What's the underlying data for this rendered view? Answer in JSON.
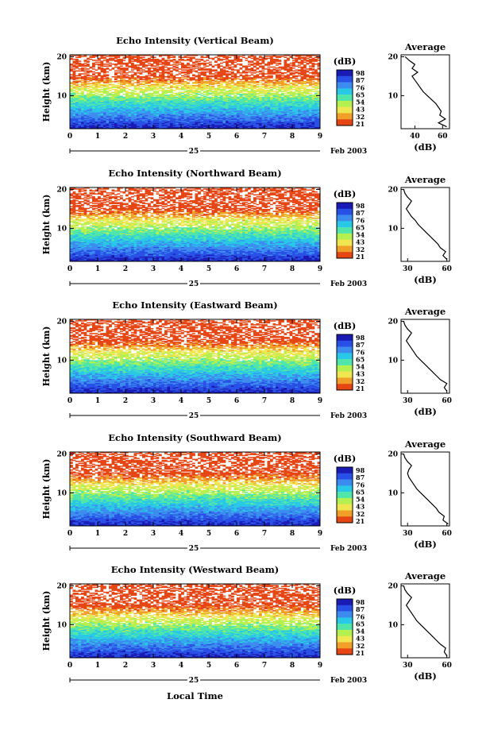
{
  "figure": {
    "time_axis_label": "Local Time",
    "date_label": "Feb 2003",
    "day_label": "25"
  },
  "colorbar": {
    "unit": "(dB)",
    "tick_labels": [
      "98",
      "87",
      "76",
      "65",
      "54",
      "43",
      "32",
      "21"
    ],
    "colors": [
      "#1a1ab4",
      "#2850e6",
      "#3c8cf0",
      "#28c8e6",
      "#50e6aa",
      "#b4f050",
      "#f0e650",
      "#f0a028",
      "#e64614"
    ]
  },
  "chart_data": [
    {
      "type": "heatmap",
      "title": "Echo Intensity (Vertical Beam)",
      "ylabel": "Height (km)",
      "xlabel": "Local Time",
      "x_ticks": [
        "0",
        "1",
        "2",
        "3",
        "4",
        "5",
        "6",
        "7",
        "8",
        "9"
      ],
      "y_ticks": [
        "10",
        "20"
      ],
      "xlim": [
        0,
        9
      ],
      "ylim": [
        1.5,
        20.5
      ],
      "profile_title": "Average",
      "profile_xlabel": "(dB)",
      "profile_x_ticks": [
        "40",
        "60"
      ],
      "profile_xlim": [
        30,
        65
      ],
      "profile_height": [
        2,
        3,
        4,
        5,
        6,
        7,
        8,
        9,
        10,
        11,
        12,
        13,
        14,
        15,
        16,
        17,
        18,
        19,
        20
      ],
      "profile_db": [
        63,
        57,
        62,
        58,
        59,
        57,
        55,
        52,
        49,
        46,
        44,
        42,
        40,
        38,
        42,
        38,
        40,
        36,
        33
      ]
    },
    {
      "type": "heatmap",
      "title": "Echo Intensity (Northward Beam)",
      "ylabel": "Height (km)",
      "xlabel": "Local Time",
      "x_ticks": [
        "0",
        "1",
        "2",
        "3",
        "4",
        "5",
        "6",
        "7",
        "8",
        "9"
      ],
      "y_ticks": [
        "10",
        "20"
      ],
      "xlim": [
        0,
        9
      ],
      "ylim": [
        1.5,
        20.5
      ],
      "profile_title": "Average",
      "profile_xlabel": "(dB)",
      "profile_x_ticks": [
        "30",
        "60"
      ],
      "profile_xlim": [
        25,
        62
      ],
      "profile_height": [
        2,
        3,
        4,
        5,
        6,
        7,
        8,
        9,
        10,
        11,
        12,
        13,
        14,
        15,
        16,
        17,
        18,
        19,
        20
      ],
      "profile_db": [
        60,
        57,
        59,
        55,
        53,
        50,
        47,
        44,
        41,
        38,
        36,
        33,
        31,
        29,
        31,
        33,
        30,
        28,
        27
      ]
    },
    {
      "type": "heatmap",
      "title": "Echo Intensity (Eastward Beam)",
      "ylabel": "Height (km)",
      "xlabel": "Local Time",
      "x_ticks": [
        "0",
        "1",
        "2",
        "3",
        "4",
        "5",
        "6",
        "7",
        "8",
        "9"
      ],
      "y_ticks": [
        "10",
        "20"
      ],
      "xlim": [
        0,
        9
      ],
      "ylim": [
        1.5,
        20.5
      ],
      "profile_title": "Average",
      "profile_xlabel": "(dB)",
      "profile_x_ticks": [
        "30",
        "60"
      ],
      "profile_xlim": [
        25,
        62
      ],
      "profile_height": [
        2,
        3,
        4,
        5,
        6,
        7,
        8,
        9,
        10,
        11,
        12,
        13,
        14,
        15,
        16,
        17,
        18,
        19,
        20
      ],
      "profile_db": [
        60,
        58,
        60,
        55,
        52,
        49,
        46,
        43,
        40,
        37,
        35,
        33,
        31,
        29,
        31,
        33,
        30,
        28,
        27
      ]
    },
    {
      "type": "heatmap",
      "title": "Echo Intensity (Southward Beam)",
      "ylabel": "Height (km)",
      "xlabel": "Local Time",
      "x_ticks": [
        "0",
        "1",
        "2",
        "3",
        "4",
        "5",
        "6",
        "7",
        "8",
        "9"
      ],
      "y_ticks": [
        "10",
        "20"
      ],
      "xlim": [
        0,
        9
      ],
      "ylim": [
        1.5,
        20.5
      ],
      "profile_title": "Average",
      "profile_xlabel": "(dB)",
      "profile_x_ticks": [
        "30",
        "60"
      ],
      "profile_xlim": [
        25,
        62
      ],
      "profile_height": [
        2,
        3,
        4,
        5,
        6,
        7,
        8,
        9,
        10,
        11,
        12,
        13,
        14,
        15,
        16,
        17,
        18,
        19,
        20
      ],
      "profile_db": [
        61,
        57,
        58,
        54,
        52,
        49,
        46,
        43,
        40,
        37,
        35,
        33,
        31,
        30,
        31,
        33,
        30,
        28,
        27
      ]
    },
    {
      "type": "heatmap",
      "title": "Echo Intensity (Westward Beam)",
      "ylabel": "Height (km)",
      "xlabel": "Local Time",
      "x_ticks": [
        "0",
        "1",
        "2",
        "3",
        "4",
        "5",
        "6",
        "7",
        "8",
        "9"
      ],
      "y_ticks": [
        "10",
        "20"
      ],
      "xlim": [
        0,
        9
      ],
      "ylim": [
        1.5,
        20.5
      ],
      "profile_title": "Average",
      "profile_xlabel": "(dB)",
      "profile_x_ticks": [
        "30",
        "60"
      ],
      "profile_xlim": [
        25,
        62
      ],
      "profile_height": [
        2,
        3,
        4,
        5,
        6,
        7,
        8,
        9,
        10,
        11,
        12,
        13,
        14,
        15,
        16,
        17,
        18,
        19,
        20
      ],
      "profile_db": [
        60,
        58,
        59,
        55,
        52,
        49,
        46,
        43,
        40,
        37,
        35,
        33,
        31,
        29,
        31,
        33,
        30,
        28,
        27
      ]
    }
  ]
}
